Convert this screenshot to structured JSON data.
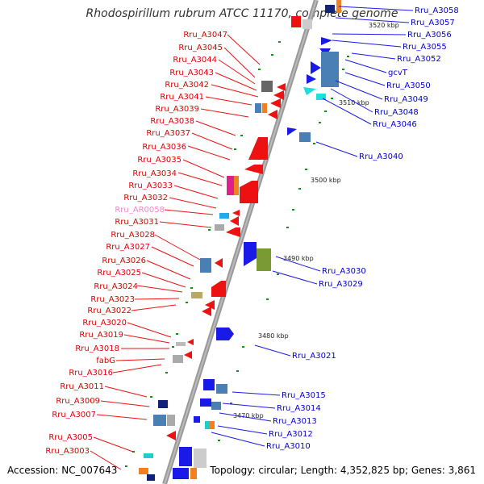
{
  "title": "Rhodospirillum rubrum ATCC 11170, complete genome",
  "footer": {
    "accession": "Accession: NC_007643",
    "summary": "Topology: circular; Length: 4,352,825 bp; Genes: 3,861"
  },
  "colors": {
    "left_label": "#dd0000",
    "right_label": "#0000cc",
    "rna_label": "#ee88cc",
    "axis": "#888888"
  },
  "scale_labels": [
    "3520 kbp",
    "3510 kbp",
    "3500 kbp",
    "3490 kbp",
    "3480 kbp",
    "3470 kbp"
  ],
  "left_genes": [
    "Rru_A3047",
    "Rru_A3045",
    "Rru_A3044",
    "Rru_A3043",
    "Rru_A3042",
    "Rru_A3041",
    "Rru_A3039",
    "Rru_A3038",
    "Rru_A3037",
    "Rru_A3036",
    "Rru_A3035",
    "Rru_A3034",
    "Rru_A3033",
    "Rru_A3032",
    "Rru_AR0058",
    "Rru_A3031",
    "Rru_A3028",
    "Rru_A3027",
    "Rru_A3026",
    "Rru_A3025",
    "Rru_A3024",
    "Rru_A3023",
    "Rru_A3022",
    "Rru_A3020",
    "Rru_A3019",
    "Rru_A3018",
    "fabG",
    "Rru_A3016",
    "Rru_A3011",
    "Rru_A3009",
    "Rru_A3007",
    "Rru_A3005",
    "Rru_A3003"
  ],
  "right_genes": [
    "Rru_A3058",
    "Rru_A3057",
    "Rru_A3056",
    "Rru_A3055",
    "Rru_A3052",
    "gcvT",
    "Rru_A3050",
    "Rru_A3049",
    "Rru_A3048",
    "Rru_A3046",
    "Rru_A3040",
    "Rru_A3030",
    "Rru_A3029",
    "Rru_A3021",
    "Rru_A3015",
    "Rru_A3014",
    "Rru_A3013",
    "Rru_A3012",
    "Rru_A3010"
  ]
}
